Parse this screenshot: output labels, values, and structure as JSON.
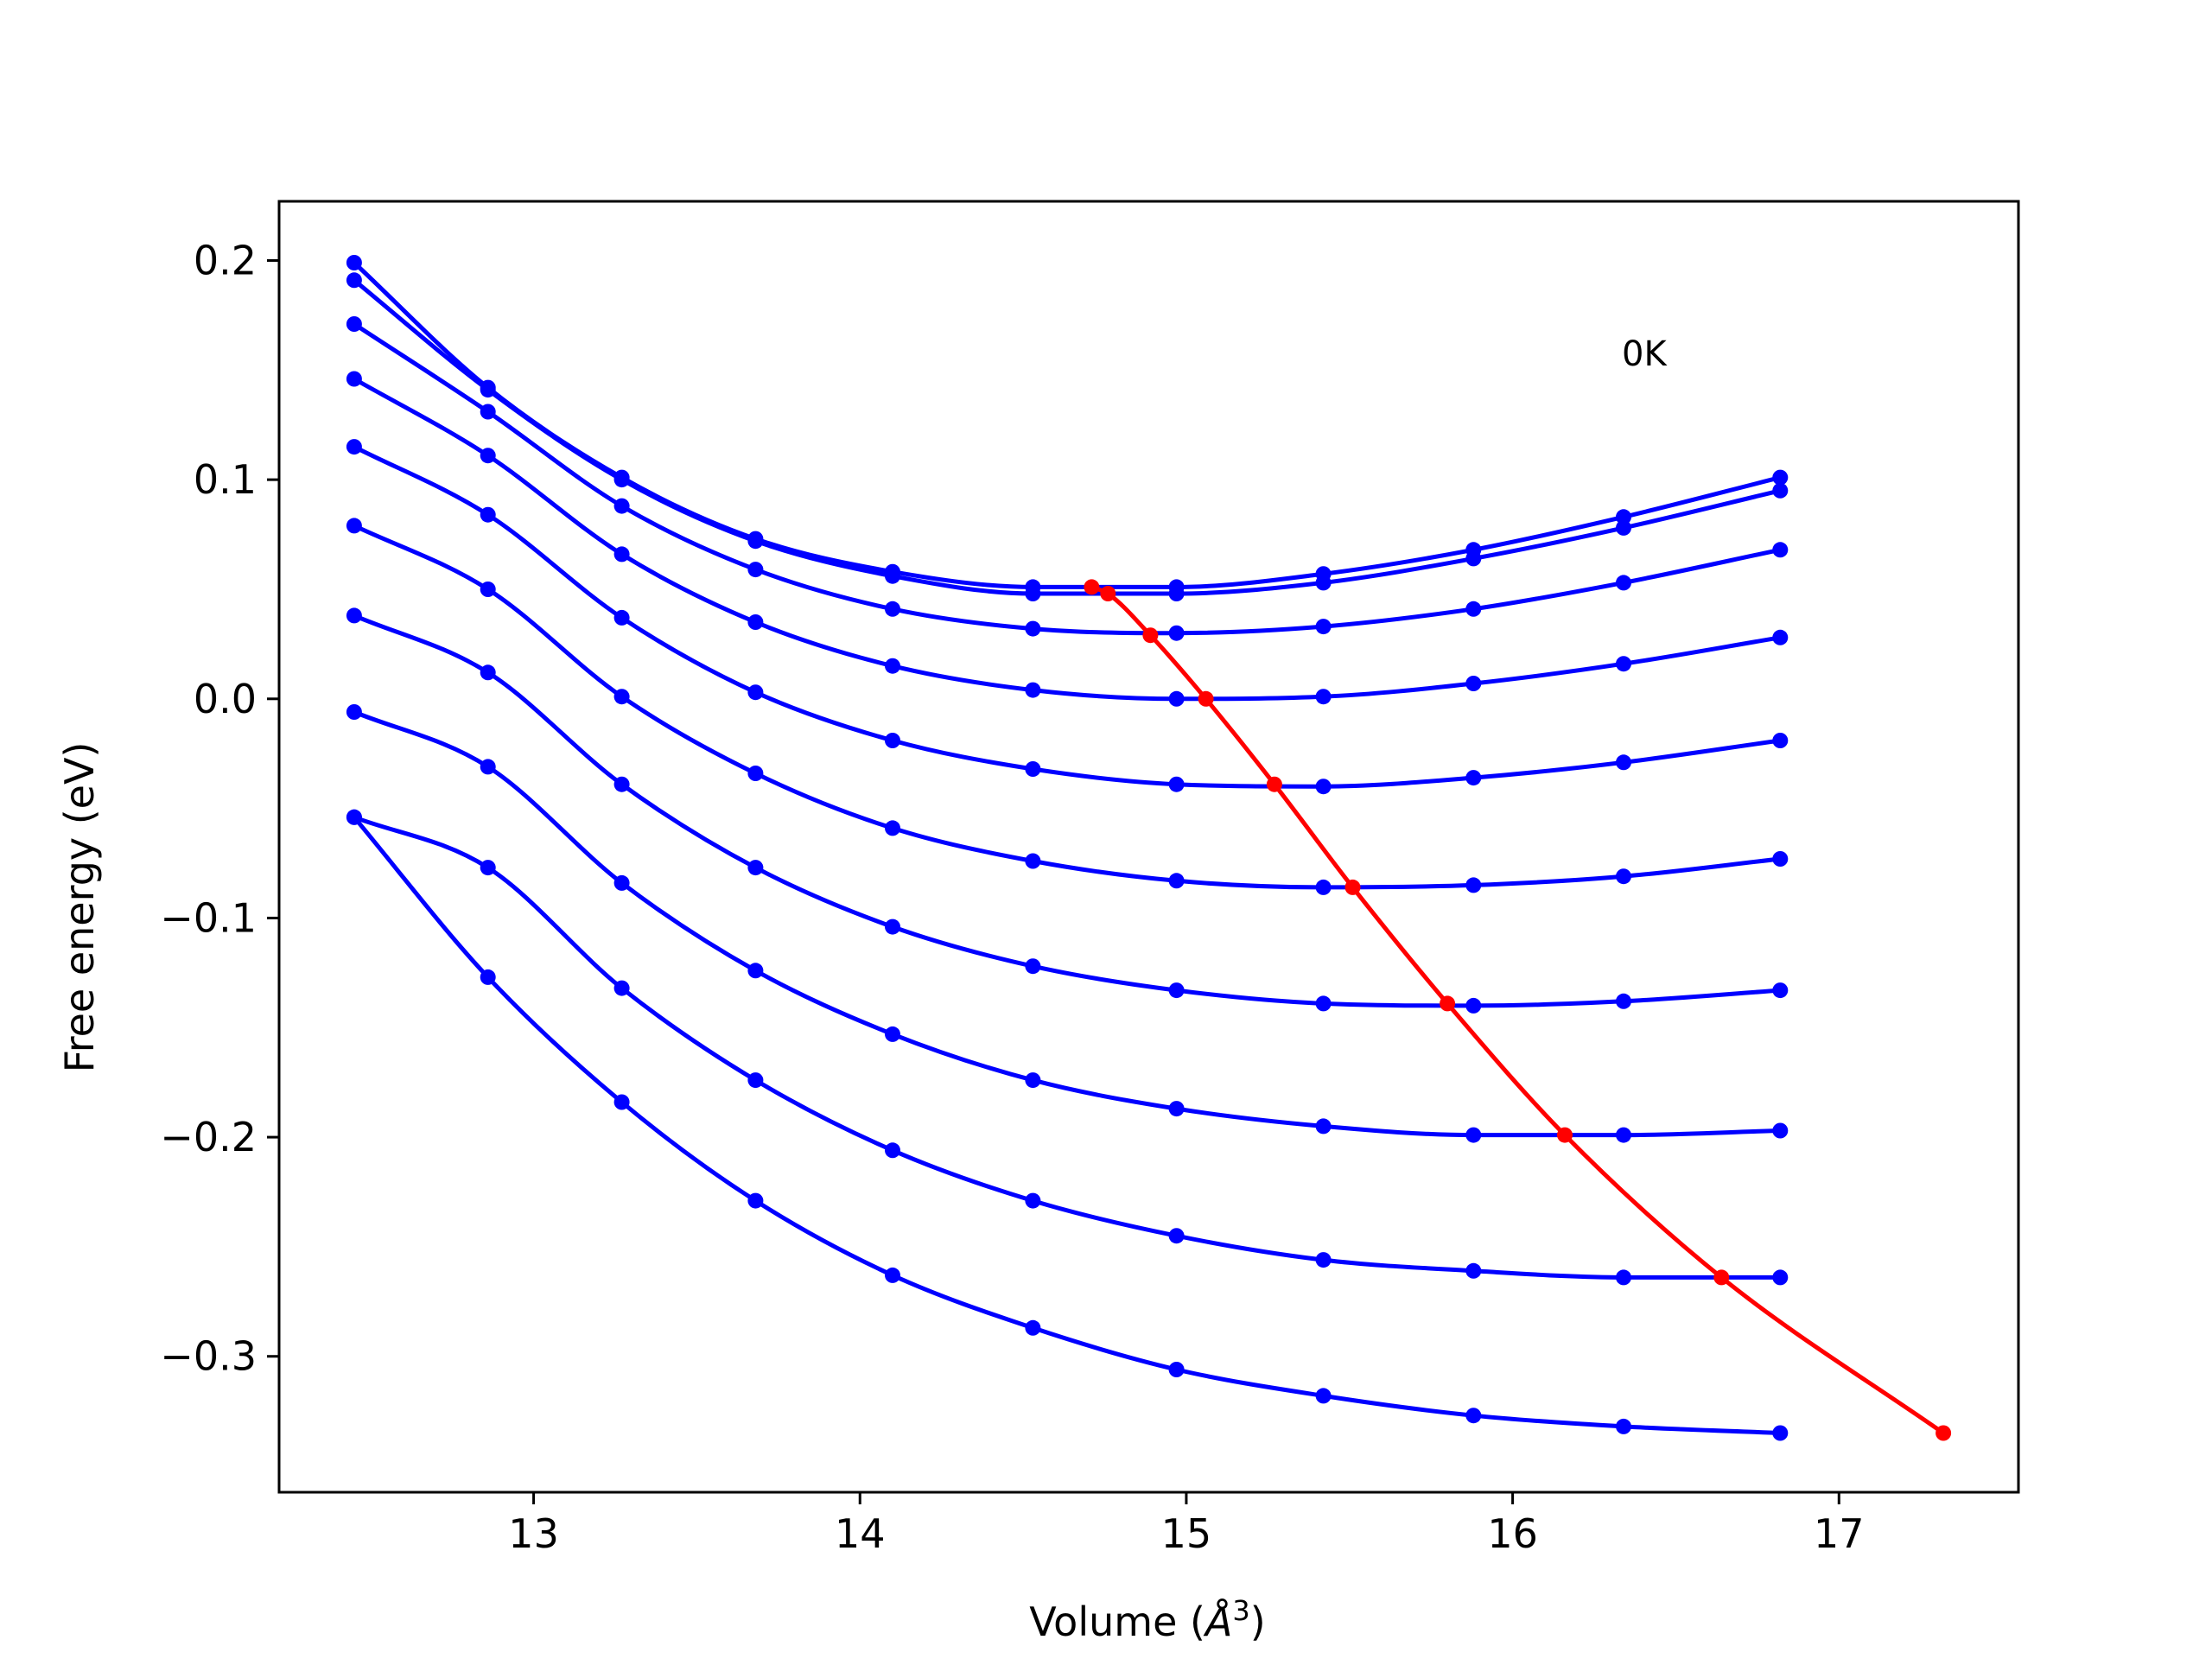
{
  "chart_data": {
    "type": "line",
    "xlabel": "Volume (",
    "xlabel_symbol": "Å",
    "xlabel_exp": "3",
    "xlabel_close": ")",
    "ylabel": "Free energy (eV)",
    "annotation": "0K",
    "xlim": [
      12.22,
      17.55
    ],
    "ylim": [
      -0.362,
      0.227
    ],
    "xticks": [
      {
        "value": 13,
        "label": "13"
      },
      {
        "value": 14,
        "label": "14"
      },
      {
        "value": 15,
        "label": "15"
      },
      {
        "value": 16,
        "label": "16"
      },
      {
        "value": 17,
        "label": "17"
      }
    ],
    "yticks": [
      {
        "value": 0.2,
        "label": "0.2"
      },
      {
        "value": 0.1,
        "label": "0.1"
      },
      {
        "value": 0.0,
        "label": "0.0"
      },
      {
        "value": -0.1,
        "label": "−0.1"
      },
      {
        "value": -0.2,
        "label": "−0.2"
      },
      {
        "value": -0.3,
        "label": "−0.3"
      }
    ],
    "grid": false,
    "x": [
      12.45,
      12.86,
      13.27,
      13.68,
      14.1,
      14.53,
      14.97,
      15.42,
      15.88,
      16.34,
      16.82
    ],
    "series": [
      {
        "color": "#0000ff",
        "values": [
          0.199,
          0.142,
          0.101,
          0.073,
          0.058,
          0.051,
          0.051,
          0.057,
          0.068,
          0.083,
          0.101
        ]
      },
      {
        "color": "#0000ff",
        "values": [
          0.191,
          0.141,
          0.1,
          0.072,
          0.056,
          0.048,
          0.048,
          0.053,
          0.064,
          0.078,
          0.095
        ]
      },
      {
        "color": "#0000ff",
        "values": [
          0.171,
          0.131,
          0.088,
          0.059,
          0.041,
          0.032,
          0.03,
          0.033,
          0.041,
          0.053,
          0.068
        ]
      },
      {
        "color": "#0000ff",
        "values": [
          0.146,
          0.111,
          0.066,
          0.035,
          0.015,
          0.004,
          0.0,
          0.001,
          0.007,
          0.016,
          0.028
        ]
      },
      {
        "color": "#0000ff",
        "values": [
          0.115,
          0.084,
          0.037,
          0.003,
          -0.019,
          -0.032,
          -0.039,
          -0.04,
          -0.036,
          -0.029,
          -0.019
        ]
      },
      {
        "color": "#0000ff",
        "values": [
          0.079,
          0.05,
          0.001,
          -0.034,
          -0.059,
          -0.074,
          -0.083,
          -0.086,
          -0.085,
          -0.081,
          -0.073
        ]
      },
      {
        "color": "#0000ff",
        "values": [
          0.038,
          0.012,
          -0.039,
          -0.077,
          -0.104,
          -0.122,
          -0.133,
          -0.139,
          -0.14,
          -0.138,
          -0.133
        ]
      },
      {
        "color": "#0000ff",
        "values": [
          -0.006,
          -0.031,
          -0.084,
          -0.124,
          -0.153,
          -0.174,
          -0.187,
          -0.195,
          -0.199,
          -0.199,
          -0.197
        ]
      },
      {
        "color": "#0000ff",
        "values": [
          -0.054,
          -0.077,
          -0.132,
          -0.174,
          -0.206,
          -0.229,
          -0.245,
          -0.256,
          -0.261,
          -0.264,
          -0.264
        ]
      },
      {
        "color": "#0000ff",
        "values": [
          -0.054,
          -0.127,
          -0.184,
          -0.229,
          -0.263,
          -0.287,
          -0.306,
          -0.318,
          -0.327,
          -0.332,
          -0.335
        ]
      }
    ],
    "minimum_curve": {
      "color": "#ff0000",
      "x": [
        14.71,
        14.76,
        14.89,
        15.06,
        15.27,
        15.51,
        15.8,
        16.16,
        16.64,
        17.32
      ],
      "y": [
        0.051,
        0.048,
        0.029,
        0.0,
        -0.039,
        -0.086,
        -0.139,
        -0.199,
        -0.264,
        -0.335
      ]
    }
  }
}
